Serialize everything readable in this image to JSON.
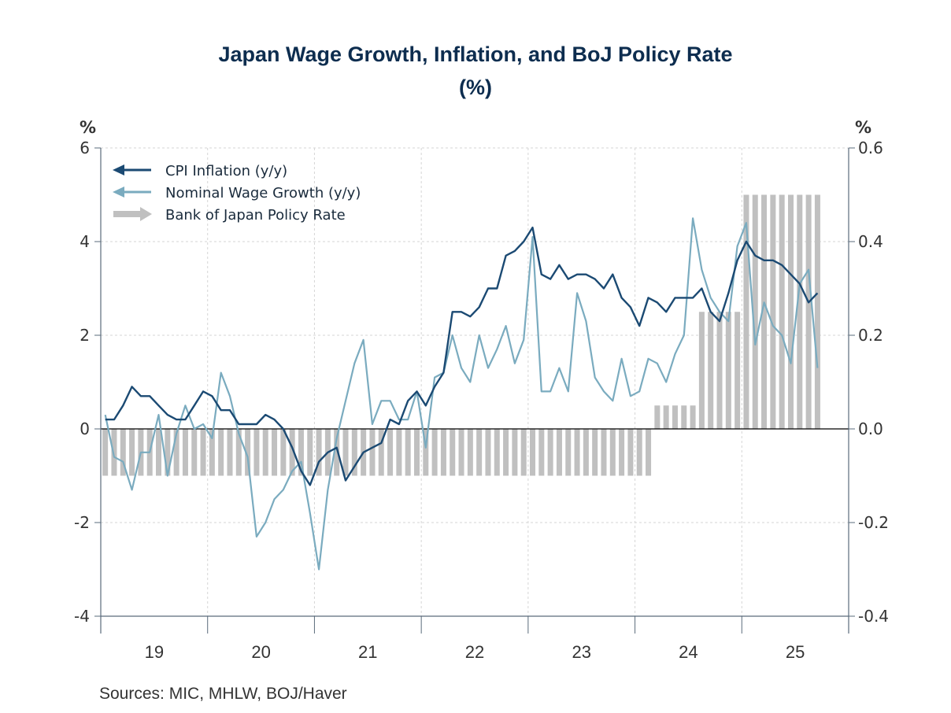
{
  "chart_data": {
    "type": "bar+line",
    "title": "Japan Wage Growth, Inflation, and BoJ Policy Rate",
    "subtitle": "(%)",
    "source": "Sources:  MIC, MHLW, BOJ/Haver",
    "left_axis": {
      "unit": "%",
      "range": [
        -4,
        6
      ],
      "ticks": [
        6,
        4,
        2,
        0,
        -2,
        -4
      ],
      "tick_labels": [
        "6",
        "4",
        "2",
        "0",
        "-2",
        "-4"
      ]
    },
    "right_axis": {
      "unit": "%",
      "range": [
        -0.4,
        0.6
      ],
      "ticks": [
        0.6,
        0.4,
        0.2,
        0.0,
        -0.2,
        -0.4
      ],
      "tick_labels": [
        "0.6",
        "0.4",
        "0.2",
        "0.0",
        "-0.2",
        "-0.4"
      ]
    },
    "x_axis": {
      "start": "2019-01",
      "frequency": "monthly",
      "year_labels": [
        "19",
        "20",
        "21",
        "22",
        "23",
        "24",
        "25"
      ],
      "span_months": 84
    },
    "grid": true,
    "legend_position": "top-left",
    "series": [
      {
        "name": "CPI Inflation (y/y)",
        "type": "line",
        "axis": "left",
        "color": "#1b4a73",
        "values": [
          0.2,
          0.2,
          0.5,
          0.9,
          0.7,
          0.7,
          0.5,
          0.3,
          0.2,
          0.2,
          0.5,
          0.8,
          0.7,
          0.4,
          0.4,
          0.1,
          0.1,
          0.1,
          0.3,
          0.2,
          0.0,
          -0.4,
          -0.9,
          -1.2,
          -0.7,
          -0.5,
          -0.4,
          -1.1,
          -0.8,
          -0.5,
          -0.4,
          -0.3,
          0.2,
          0.1,
          0.6,
          0.8,
          0.5,
          0.9,
          1.2,
          2.5,
          2.5,
          2.4,
          2.6,
          3.0,
          3.0,
          3.7,
          3.8,
          4.0,
          4.3,
          3.3,
          3.2,
          3.5,
          3.2,
          3.3,
          3.3,
          3.2,
          3.0,
          3.3,
          2.8,
          2.6,
          2.2,
          2.8,
          2.7,
          2.5,
          2.8,
          2.8,
          2.8,
          3.0,
          2.5,
          2.3,
          2.9,
          3.6,
          4.0,
          3.7,
          3.6,
          3.6,
          3.5,
          3.3,
          3.1,
          2.7,
          2.9
        ]
      },
      {
        "name": "Nominal Wage Growth (y/y)",
        "type": "line",
        "axis": "left",
        "color": "#7aabbf",
        "values": [
          0.3,
          -0.6,
          -0.7,
          -1.3,
          -0.5,
          -0.5,
          0.3,
          -1.0,
          -0.1,
          0.5,
          0.0,
          0.1,
          -0.2,
          1.2,
          0.7,
          -0.1,
          -0.6,
          -2.3,
          -2.0,
          -1.5,
          -1.3,
          -0.9,
          -0.7,
          -1.8,
          -3.0,
          -1.3,
          -0.2,
          0.6,
          1.4,
          1.9,
          0.1,
          0.6,
          0.6,
          0.2,
          0.2,
          0.8,
          -0.4,
          1.1,
          1.2,
          2.0,
          1.3,
          1.0,
          2.0,
          1.3,
          1.7,
          2.2,
          1.4,
          1.9,
          4.1,
          0.8,
          0.8,
          1.3,
          0.8,
          2.9,
          2.3,
          1.1,
          0.8,
          0.6,
          1.5,
          0.7,
          0.8,
          1.5,
          1.4,
          1.0,
          1.6,
          2.0,
          4.5,
          3.4,
          2.8,
          2.5,
          2.3,
          3.9,
          4.4,
          1.8,
          2.7,
          2.2,
          2.0,
          1.4,
          3.1,
          3.4,
          1.3
        ]
      },
      {
        "name": "Bank of Japan Policy Rate",
        "type": "bar",
        "axis": "right",
        "color": "#c0c0c0",
        "values": [
          -0.1,
          -0.1,
          -0.1,
          -0.1,
          -0.1,
          -0.1,
          -0.1,
          -0.1,
          -0.1,
          -0.1,
          -0.1,
          -0.1,
          -0.1,
          -0.1,
          -0.1,
          -0.1,
          -0.1,
          -0.1,
          -0.1,
          -0.1,
          -0.1,
          -0.1,
          -0.1,
          -0.1,
          -0.1,
          -0.1,
          -0.1,
          -0.1,
          -0.1,
          -0.1,
          -0.1,
          -0.1,
          -0.1,
          -0.1,
          -0.1,
          -0.1,
          -0.1,
          -0.1,
          -0.1,
          -0.1,
          -0.1,
          -0.1,
          -0.1,
          -0.1,
          -0.1,
          -0.1,
          -0.1,
          -0.1,
          -0.1,
          -0.1,
          -0.1,
          -0.1,
          -0.1,
          -0.1,
          -0.1,
          -0.1,
          -0.1,
          -0.1,
          -0.1,
          -0.1,
          -0.1,
          -0.1,
          0.05,
          0.05,
          0.05,
          0.05,
          0.05,
          0.25,
          0.25,
          0.25,
          0.25,
          0.25,
          0.5,
          0.5,
          0.5,
          0.5,
          0.5,
          0.5,
          0.5,
          0.5,
          0.5
        ]
      }
    ]
  }
}
